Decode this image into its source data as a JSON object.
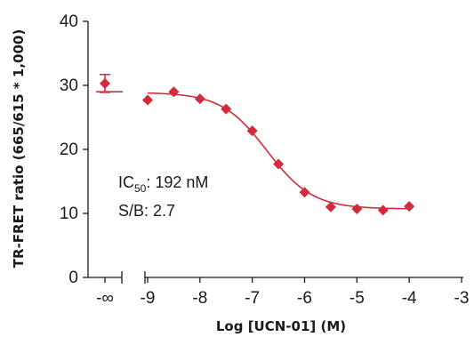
{
  "chart_data": {
    "type": "scatter",
    "xlabel": "Log [UCN-01] (M)",
    "ylabel": "TR-FRET ratio (665/615 * 1,000)",
    "xlim": [
      -9.33,
      -3
    ],
    "ylim": [
      0,
      40
    ],
    "y_ticks": [
      0,
      10,
      20,
      30,
      40
    ],
    "x_ticks": [
      -9,
      -8,
      -7,
      -6,
      -5,
      -4,
      -3
    ],
    "x_tick_labels": [
      "-9",
      "-8",
      "-7",
      "-6",
      "-5",
      "-4",
      "-3"
    ],
    "neg_inf_label": "-∞",
    "neg_inf_point": {
      "y": 30.3,
      "err": 1.4
    },
    "neg_inf_line_y": 29.0,
    "points": [
      {
        "x": -9.0,
        "y": 27.7
      },
      {
        "x": -8.5,
        "y": 29.0
      },
      {
        "x": -8.0,
        "y": 27.9
      },
      {
        "x": -7.5,
        "y": 26.3
      },
      {
        "x": -7.0,
        "y": 22.9
      },
      {
        "x": -6.5,
        "y": 17.7
      },
      {
        "x": -6.0,
        "y": 13.3
      },
      {
        "x": -5.5,
        "y": 11.0
      },
      {
        "x": -5.0,
        "y": 10.7
      },
      {
        "x": -4.5,
        "y": 10.5
      },
      {
        "x": -4.0,
        "y": 11.1
      }
    ],
    "fit": {
      "top": 28.9,
      "bottom": 10.7,
      "log_ic50": -6.72,
      "hill": 1.0,
      "x_range": [
        -9.0,
        -4.0
      ]
    },
    "annotation": {
      "ic50_prefix": "IC",
      "ic50_sub": "50",
      "ic50_value": ": 192 nM",
      "sb_text": "S/B: 2.7"
    },
    "colors": {
      "marker": "#d42a3c",
      "fit": "#d42a3c",
      "axis": "#1a1a1a"
    }
  }
}
